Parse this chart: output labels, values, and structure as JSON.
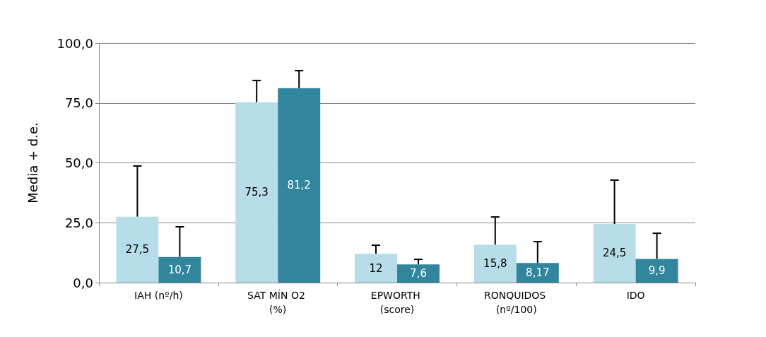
{
  "chart_data": {
    "type": "bar",
    "ylabel": "Media + d.e.",
    "categories": [
      "IAH (nº/h)",
      "SAT MÍN O2 (%)",
      "EPWORTH (score)",
      "RONQUIDOS (nº/100)",
      "IDO"
    ],
    "series": [
      {
        "color": "#b7dde8",
        "values": [
          27.5,
          75.3,
          12,
          15.8,
          24.5
        ],
        "value_labels": [
          "27,5",
          "75,3",
          "12",
          "15,8",
          "24,5"
        ],
        "errors": [
          [
            27.5,
            48.7
          ],
          [
            75.3,
            84.4
          ],
          [
            12,
            15.6
          ],
          [
            15.8,
            27.4
          ],
          [
            24.5,
            42.8
          ]
        ]
      },
      {
        "color": "#31859c",
        "values": [
          10.7,
          81.2,
          7.6,
          8.17,
          9.9
        ],
        "value_labels": [
          "10,7",
          "81,2",
          "7,6",
          "8,17",
          "9,9"
        ],
        "errors": [
          [
            10.7,
            23.3
          ],
          [
            81.2,
            88.5
          ],
          [
            7.6,
            9.7
          ],
          [
            8.17,
            17.1
          ],
          [
            9.9,
            20.6
          ]
        ]
      }
    ],
    "ylim": [
      0,
      100
    ],
    "yticks": [
      {
        "value": 0,
        "label": "0,0"
      },
      {
        "value": 25,
        "label": "25,0"
      },
      {
        "value": 50,
        "label": "50,0"
      },
      {
        "value": 75,
        "label": "75,0"
      },
      {
        "value": 100,
        "label": "100,0"
      }
    ],
    "grid": "y"
  }
}
